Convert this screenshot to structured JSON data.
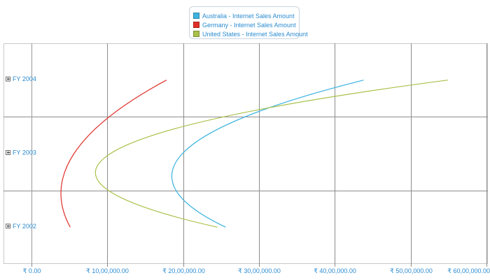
{
  "chart_data": {
    "type": "line",
    "orientation": "horizontal",
    "title": "",
    "xlabel": "",
    "ylabel": "",
    "categories": [
      "FY 2002",
      "FY 2003",
      "FY 2004"
    ],
    "xlim": [
      0,
      6000000
    ],
    "x_ticks": [
      0,
      1000000,
      2000000,
      3000000,
      4000000,
      5000000,
      6000000
    ],
    "x_tick_labels": [
      "₹ 0.00",
      "₹ 10,00,000.00",
      "₹ 20,00,000.00",
      "₹ 30,00,000.00",
      "₹ 40,00,000.00",
      "₹ 50,00,000.00",
      "₹ 60,00,000.00"
    ],
    "grid": true,
    "legend_position": "top-center",
    "series": [
      {
        "name": "Australia - Internet Sales Amount",
        "color": "#3cb3e0",
        "values": [
          2560000,
          1990000,
          4380000
        ]
      },
      {
        "name": "Germany - Internet Sales Amount",
        "color": "#e0302a",
        "values": [
          510000,
          560000,
          1780000
        ]
      },
      {
        "name": "United States - Internet Sales Amount",
        "color": "#a8c14a",
        "values": [
          2450000,
          1040000,
          5490000
        ]
      }
    ]
  },
  "expand_icon": "plus-box-icon"
}
